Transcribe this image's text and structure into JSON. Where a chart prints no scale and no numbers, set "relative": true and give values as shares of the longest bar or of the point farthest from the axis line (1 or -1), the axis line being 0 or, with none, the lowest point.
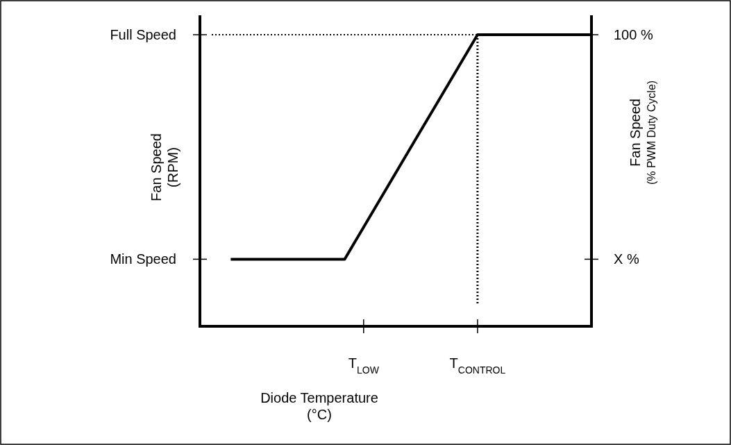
{
  "chart_data": {
    "type": "line",
    "relative": true,
    "xlabel": "Diode Temperature\n(°C)",
    "ylabel": "Fan Speed\n(RPM)",
    "y2label": "Fan Speed\n(% PWM Duty Cycle)",
    "categories": [
      null,
      null,
      null,
      null,
      null,
      null,
      null,
      null,
      "T$_{LOW}$",
      null,
      null,
      null,
      null,
      null,
      "T$_{CONTROL}$",
      null,
      null,
      null,
      null,
      null,
      null
    ],
    "grid": false,
    "series": [
      {
        "color": "#000000",
        "values": [
          null,
          0.23,
          0.23,
          0.23,
          0.23,
          0.23,
          0.23,
          0.23,
          0.34,
          0.45,
          0.56,
          0.67,
          0.78,
          0.89,
          1,
          1,
          1,
          1,
          1,
          1,
          1
        ]
      }
    ],
    "ref_lines": [
      {
        "axis": "y",
        "value": 1,
        "line_style": "dotted",
        "color": "#000000"
      },
      {
        "axis": "x",
        "value": "T$_{CONTROL}$",
        "line_style": "dotted",
        "color": "#000000"
      }
    ],
    "annotations": [
      "Min Speed",
      "Full Speed",
      "X %",
      "100 %"
    ]
  }
}
